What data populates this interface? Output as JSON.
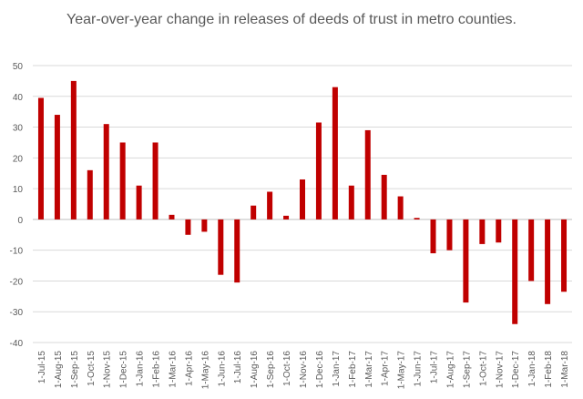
{
  "chart_data": {
    "type": "bar",
    "title": "Year-over-year change in releases of deeds of trust in metro counties.",
    "xlabel": "",
    "ylabel": "",
    "ylim": [
      -40,
      50
    ],
    "yticks": [
      -40,
      -30,
      -20,
      -10,
      0,
      10,
      20,
      30,
      40,
      50
    ],
    "ytick_labels": [
      "-40",
      "-30",
      "-20",
      "-10",
      "0",
      "10",
      "20",
      "30",
      "40",
      "50"
    ],
    "grid": true,
    "legend": "none",
    "bar_color": "#C00000",
    "categories": [
      "1-Jul-15",
      "1-Aug-15",
      "1-Sep-15",
      "1-Oct-15",
      "1-Nov-15",
      "1-Dec-15",
      "1-Jan-16",
      "1-Feb-16",
      "1-Mar-16",
      "1-Apr-16",
      "1-May-16",
      "1-Jun-16",
      "1-Jul-16",
      "1-Aug-16",
      "1-Sep-16",
      "1-Oct-16",
      "1-Nov-16",
      "1-Dec-16",
      "1-Jan-17",
      "1-Feb-17",
      "1-Mar-17",
      "1-Apr-17",
      "1-May-17",
      "1-Jun-17",
      "1-Jul-17",
      "1-Aug-17",
      "1-Sep-17",
      "1-Oct-17",
      "1-Nov-17",
      "1-Dec-17",
      "1-Jan-18",
      "1-Feb-18",
      "1-Mar-18"
    ],
    "values": [
      39.5,
      34,
      45,
      16,
      31,
      25,
      11,
      25,
      1.5,
      -5,
      -4,
      -18,
      -20.5,
      4.5,
      9,
      1.2,
      13,
      31.5,
      43,
      11,
      29,
      14.5,
      7.5,
      0.5,
      -11,
      -10,
      -27,
      -8,
      -7.5,
      -34,
      -20,
      -27.5,
      -23.5
    ]
  }
}
